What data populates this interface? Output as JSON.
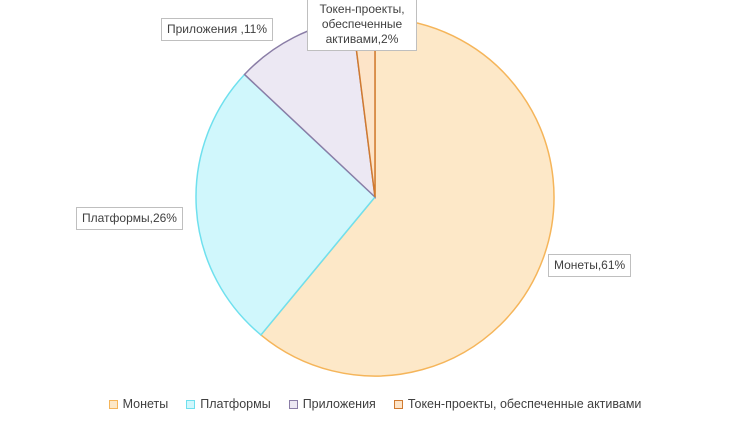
{
  "chart_data": {
    "type": "pie",
    "categories": [
      "Монеты",
      "Платформы",
      "Приложения",
      "Токен-проекты, обеспеченные активами"
    ],
    "values": [
      61,
      26,
      11,
      2
    ],
    "data_labels": [
      "Монеты,61%",
      "Платформы,26%",
      "Приложения ,11%",
      "Токен-проекты, обеспеченные активами,2%"
    ],
    "data_label_lines": [
      [
        "Монеты,61%"
      ],
      [
        "Платформы,26%"
      ],
      [
        "Приложения ,11%"
      ],
      [
        "Токен-проекты,",
        "обеспеченные",
        "активами,2%"
      ]
    ],
    "legend_position": "bottom",
    "colors": {
      "fills": [
        "#fde8c8",
        "#d0f7fc",
        "#ece8f3",
        "#fde4c8"
      ],
      "strokes": [
        "#f5b55a",
        "#6fe0ee",
        "#8a7da6",
        "#d07a30"
      ]
    }
  }
}
